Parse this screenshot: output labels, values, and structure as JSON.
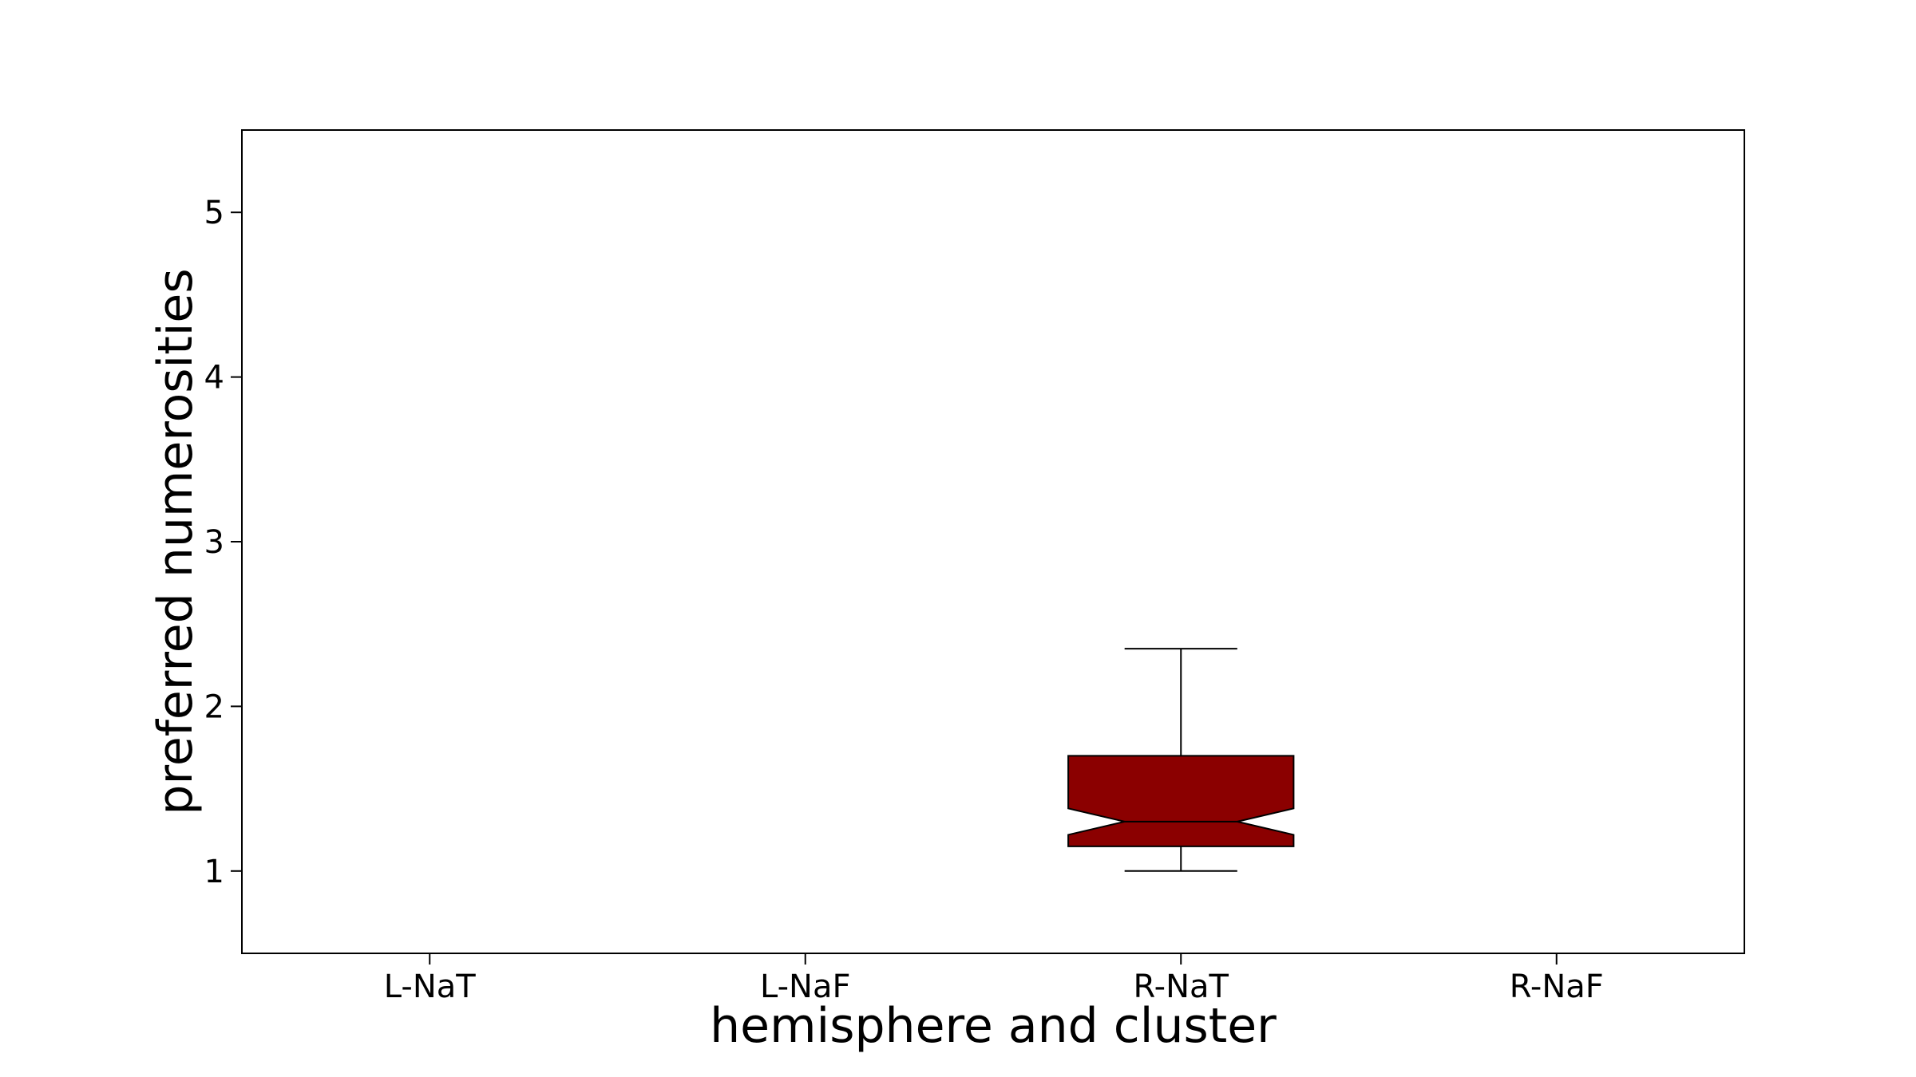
{
  "chart_data": {
    "type": "boxplot",
    "xlabel": "hemisphere and cluster",
    "ylabel": "preferred numerosities",
    "categories": [
      "L-NaT",
      "L-NaF",
      "R-NaT",
      "R-NaF"
    ],
    "ylim": [
      0.5,
      5.5
    ],
    "yticks": [
      1,
      2,
      3,
      4,
      5
    ],
    "notched": true,
    "grid": false,
    "box_color": "#8b0000",
    "boxes": [
      {
        "category": "R-NaT",
        "whisker_low": 1.0,
        "q1": 1.15,
        "notch_low": 1.22,
        "median": 1.3,
        "notch_high": 1.38,
        "q3": 1.7,
        "whisker_high": 2.35
      }
    ]
  }
}
